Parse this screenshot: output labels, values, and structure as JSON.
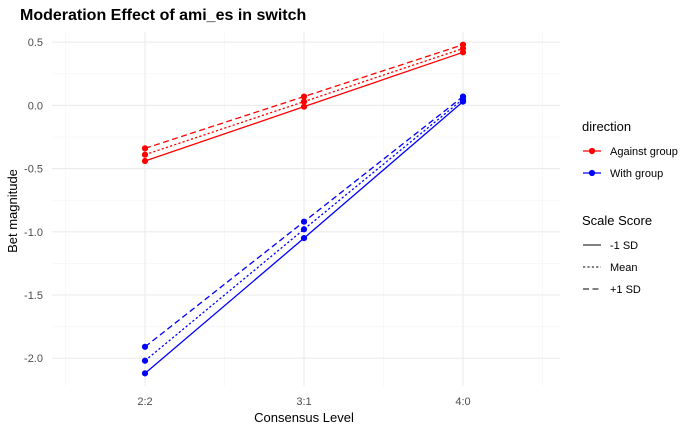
{
  "chart_data": {
    "type": "line",
    "title": "Moderation Effect of ami_es in switch",
    "xlabel": "Consensus Level",
    "ylabel": "Bet magnitude",
    "categories": [
      "2:2",
      "3:1",
      "4:0"
    ],
    "ylim": [
      -2.2,
      0.55
    ],
    "yticks": [
      0.5,
      0.0,
      -0.5,
      -1.0,
      -1.5,
      -2.0
    ],
    "ytick_labels": [
      "0.5",
      "0.0",
      "-0.5",
      "-1.0",
      "-1.5",
      "-2.0"
    ],
    "grid": true,
    "legend_position": "right",
    "colors": {
      "Against group": "#ff0000",
      "With group": "#0000ff"
    },
    "linetypes": {
      "-1 SD": "solid",
      "Mean": "dotted",
      "+1 SD": "dashed"
    },
    "series": [
      {
        "name": "Against group",
        "scale": "-1 SD",
        "values": [
          -0.44,
          -0.01,
          0.42
        ]
      },
      {
        "name": "Against group",
        "scale": "Mean",
        "values": [
          -0.39,
          0.03,
          0.45
        ]
      },
      {
        "name": "Against group",
        "scale": "+1 SD",
        "values": [
          -0.34,
          0.07,
          0.48
        ]
      },
      {
        "name": "With group",
        "scale": "-1 SD",
        "values": [
          -2.12,
          -1.05,
          0.03
        ]
      },
      {
        "name": "With group",
        "scale": "Mean",
        "values": [
          -2.02,
          -0.98,
          0.05
        ]
      },
      {
        "name": "With group",
        "scale": "+1 SD",
        "values": [
          -1.91,
          -0.92,
          0.07
        ]
      }
    ],
    "legends": [
      {
        "title": "direction",
        "kind": "color",
        "items": [
          "Against group",
          "With group"
        ]
      },
      {
        "title": "Scale Score",
        "kind": "linetype",
        "items": [
          "-1 SD",
          "Mean",
          "+1 SD"
        ]
      }
    ]
  }
}
